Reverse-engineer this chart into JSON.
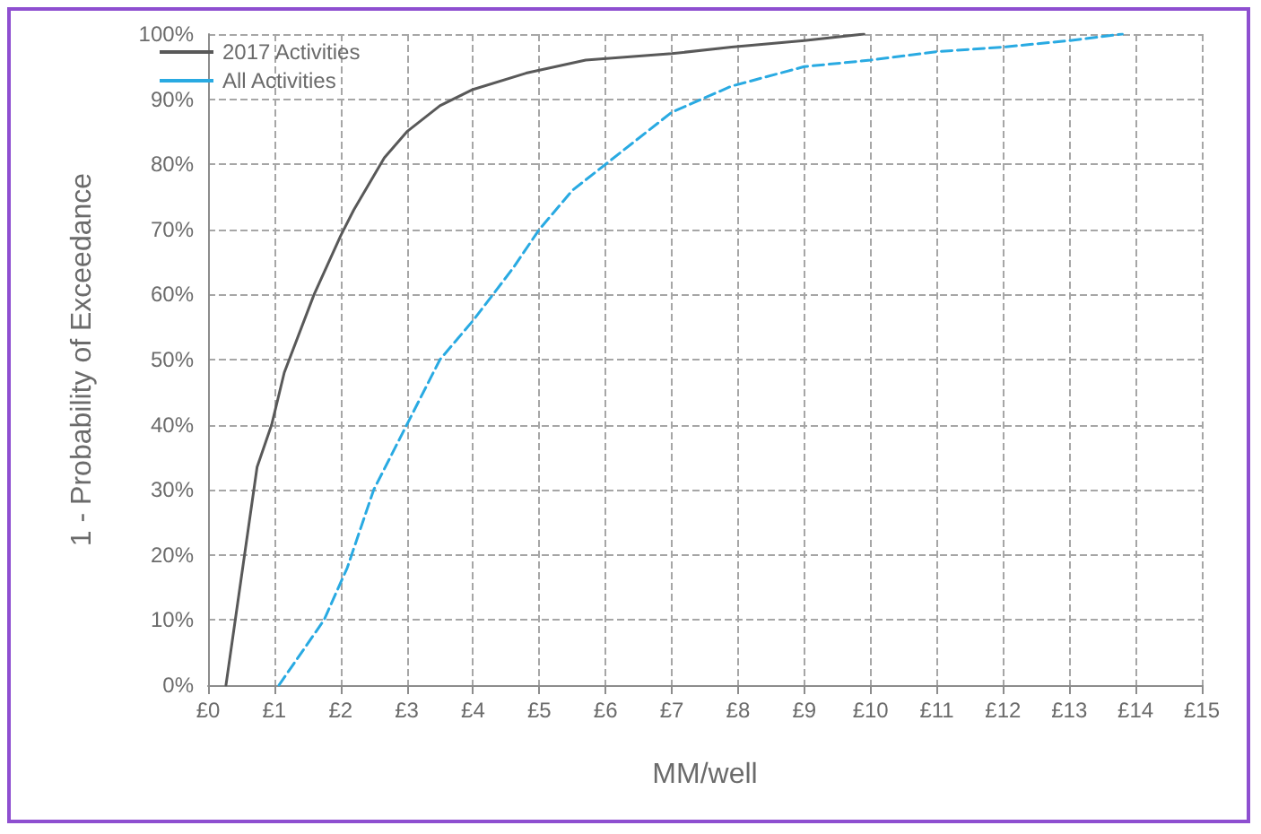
{
  "chart_data": {
    "type": "line",
    "xlabel": "MM/well",
    "ylabel": "1 - Probability of Exceedance",
    "xlim": [
      0,
      15
    ],
    "xticks": [
      {
        "value": 0,
        "label": "£0"
      },
      {
        "value": 1,
        "label": "£1"
      },
      {
        "value": 2,
        "label": "£2"
      },
      {
        "value": 3,
        "label": "£3"
      },
      {
        "value": 4,
        "label": "£4"
      },
      {
        "value": 5,
        "label": "£5"
      },
      {
        "value": 6,
        "label": "£6"
      },
      {
        "value": 7,
        "label": "£7"
      },
      {
        "value": 8,
        "label": "£8"
      },
      {
        "value": 9,
        "label": "£9"
      },
      {
        "value": 10,
        "label": "£10"
      },
      {
        "value": 11,
        "label": "£11"
      },
      {
        "value": 12,
        "label": "£12"
      },
      {
        "value": 13,
        "label": "£13"
      },
      {
        "value": 14,
        "label": "£14"
      },
      {
        "value": 15,
        "label": "£15"
      }
    ],
    "ylim": [
      0,
      100
    ],
    "yticks": [
      {
        "value": 0,
        "label": "0%"
      },
      {
        "value": 10,
        "label": "10%"
      },
      {
        "value": 20,
        "label": "20%"
      },
      {
        "value": 30,
        "label": "30%"
      },
      {
        "value": 40,
        "label": "40%"
      },
      {
        "value": 50,
        "label": "50%"
      },
      {
        "value": 60,
        "label": "60%"
      },
      {
        "value": 70,
        "label": "70%"
      },
      {
        "value": 80,
        "label": "80%"
      },
      {
        "value": 90,
        "label": "90%"
      },
      {
        "value": 100,
        "label": "100%"
      }
    ],
    "grid": true,
    "legend": "top left",
    "marker": "none",
    "series": [
      {
        "name": "2017 Activities",
        "color": "#595959",
        "line_style": "solid",
        "x": [
          0.27,
          0.74,
          0.96,
          1.15,
          1.6,
          2.0,
          2.2,
          2.66,
          3.0,
          3.5,
          4.0,
          4.8,
          5.7,
          7.0,
          7.9,
          9.0,
          9.9
        ],
        "values": [
          0,
          33.5,
          40,
          48,
          60,
          69,
          73,
          81,
          85,
          89,
          91.5,
          94,
          96,
          97,
          98,
          99,
          100
        ]
      },
      {
        "name": "All Activities",
        "color": "#29aae2",
        "line_style": "dashed",
        "x": [
          1.07,
          1.75,
          2.1,
          2.5,
          3.0,
          3.5,
          4.0,
          4.6,
          5.0,
          5.5,
          6.0,
          7.0,
          7.9,
          9.0,
          10.0,
          11.0,
          12.0,
          13.0,
          13.8
        ],
        "values": [
          0,
          10,
          18,
          30,
          40,
          50,
          56,
          64,
          70,
          76,
          80,
          88,
          92,
          95,
          96,
          97.3,
          98,
          99,
          100
        ]
      }
    ]
  }
}
